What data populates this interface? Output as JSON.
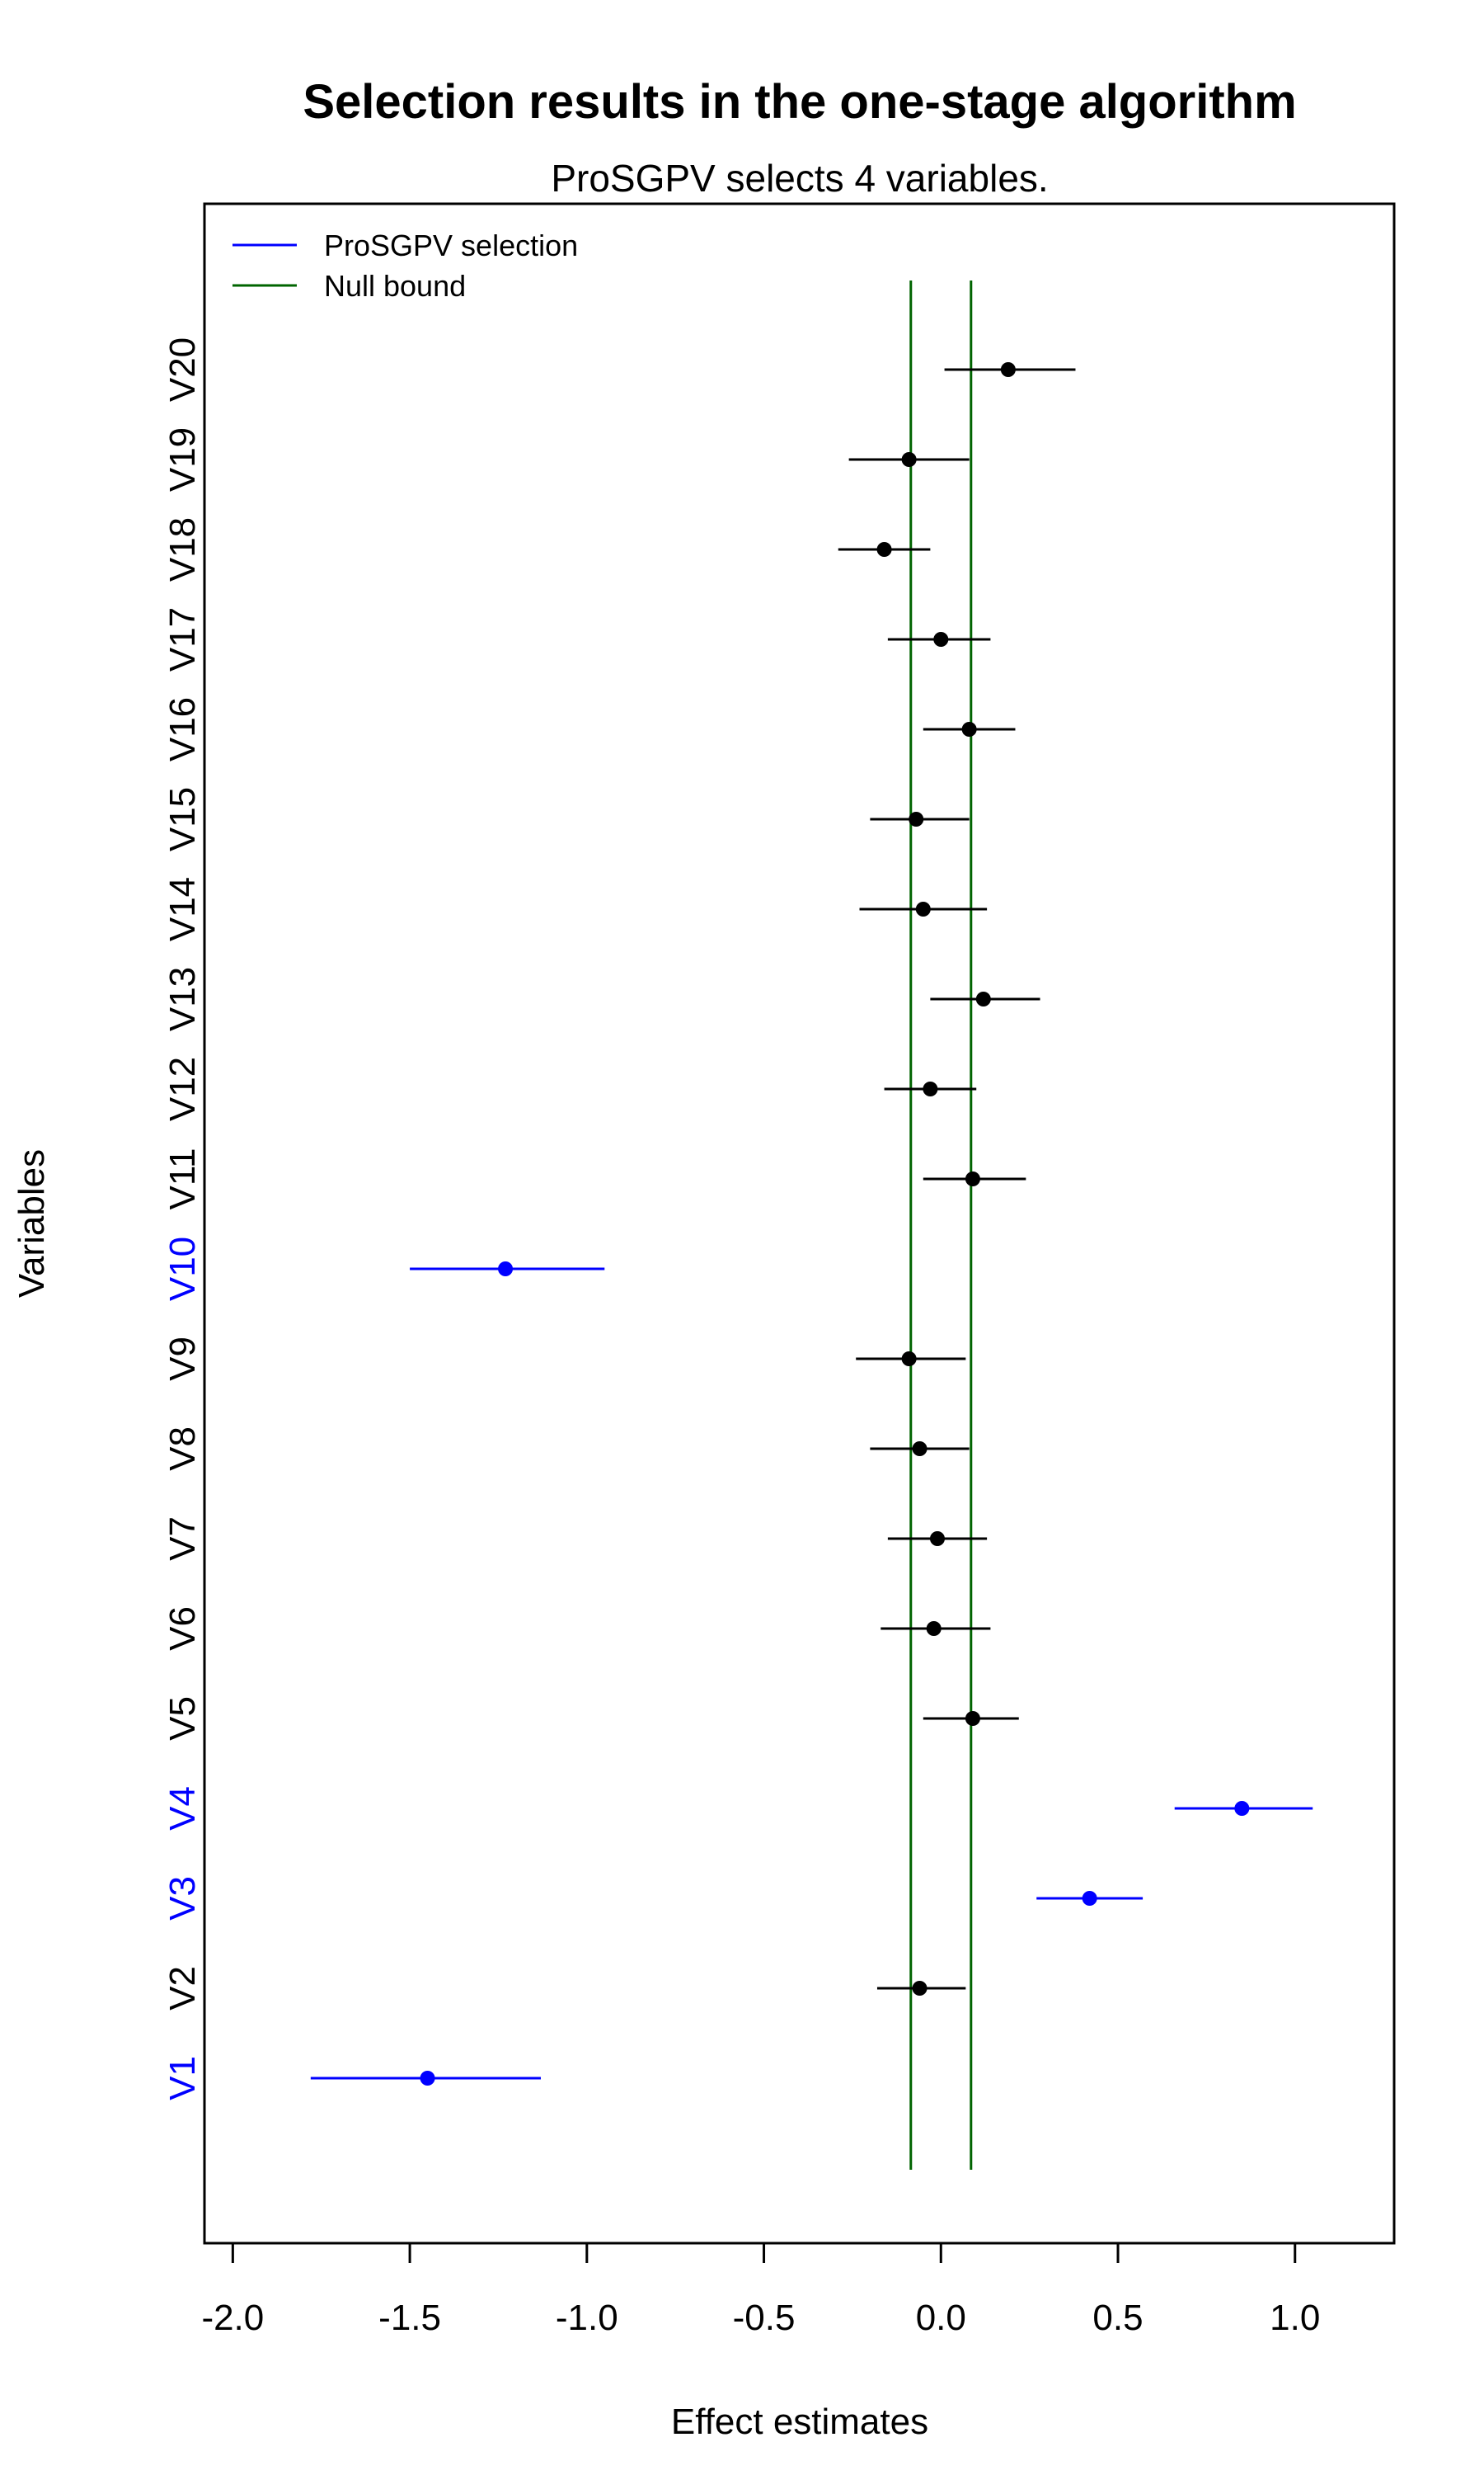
{
  "chart_data": {
    "type": "scatter",
    "title": "Selection results in the one-stage algorithm",
    "subtitle": "ProSGPV selects 4 variables.",
    "xlabel": "Effect estimates",
    "ylabel": "Variables",
    "xlim": [
      -2.08,
      1.28
    ],
    "x_ticks": [
      "-2.0",
      "-1.5",
      "-1.0",
      "-0.5",
      "0.0",
      "0.5",
      "1.0"
    ],
    "x_tick_values": [
      -2.0,
      -1.5,
      -1.0,
      -0.5,
      0.0,
      0.5,
      1.0
    ],
    "grid": false,
    "legend_position": "top-left",
    "legend": [
      {
        "label": "ProSGPV selection",
        "color": "#0000ff"
      },
      {
        "label": "Null bound",
        "color": "#006400"
      }
    ],
    "null_bounds": [
      -0.085,
      0.085
    ],
    "colors": {
      "selected": "#0000ff",
      "unselected": "#000000",
      "null_bound": "#006400"
    },
    "variables": [
      {
        "name": "V1",
        "estimate": -1.45,
        "lower": -1.78,
        "upper": -1.13,
        "selected": true
      },
      {
        "name": "V2",
        "estimate": -0.06,
        "lower": -0.18,
        "upper": 0.07,
        "selected": false
      },
      {
        "name": "V3",
        "estimate": 0.42,
        "lower": 0.27,
        "upper": 0.57,
        "selected": true
      },
      {
        "name": "V4",
        "estimate": 0.85,
        "lower": 0.66,
        "upper": 1.05,
        "selected": true
      },
      {
        "name": "V5",
        "estimate": 0.09,
        "lower": -0.05,
        "upper": 0.22,
        "selected": false
      },
      {
        "name": "V6",
        "estimate": -0.02,
        "lower": -0.17,
        "upper": 0.14,
        "selected": false
      },
      {
        "name": "V7",
        "estimate": -0.01,
        "lower": -0.15,
        "upper": 0.13,
        "selected": false
      },
      {
        "name": "V8",
        "estimate": -0.06,
        "lower": -0.2,
        "upper": 0.08,
        "selected": false
      },
      {
        "name": "V9",
        "estimate": -0.09,
        "lower": -0.24,
        "upper": 0.07,
        "selected": false
      },
      {
        "name": "V10",
        "estimate": -1.23,
        "lower": -1.5,
        "upper": -0.95,
        "selected": true
      },
      {
        "name": "V11",
        "estimate": 0.09,
        "lower": -0.05,
        "upper": 0.24,
        "selected": false
      },
      {
        "name": "V12",
        "estimate": -0.03,
        "lower": -0.16,
        "upper": 0.1,
        "selected": false
      },
      {
        "name": "V13",
        "estimate": 0.12,
        "lower": -0.03,
        "upper": 0.28,
        "selected": false
      },
      {
        "name": "V14",
        "estimate": -0.05,
        "lower": -0.23,
        "upper": 0.13,
        "selected": false
      },
      {
        "name": "V15",
        "estimate": -0.07,
        "lower": -0.2,
        "upper": 0.08,
        "selected": false
      },
      {
        "name": "V16",
        "estimate": 0.08,
        "lower": -0.05,
        "upper": 0.21,
        "selected": false
      },
      {
        "name": "V17",
        "estimate": 0.0,
        "lower": -0.15,
        "upper": 0.14,
        "selected": false
      },
      {
        "name": "V18",
        "estimate": -0.16,
        "lower": -0.29,
        "upper": -0.03,
        "selected": false
      },
      {
        "name": "V19",
        "estimate": -0.09,
        "lower": -0.26,
        "upper": 0.08,
        "selected": false
      },
      {
        "name": "V20",
        "estimate": 0.19,
        "lower": 0.01,
        "upper": 0.38,
        "selected": false
      }
    ]
  }
}
